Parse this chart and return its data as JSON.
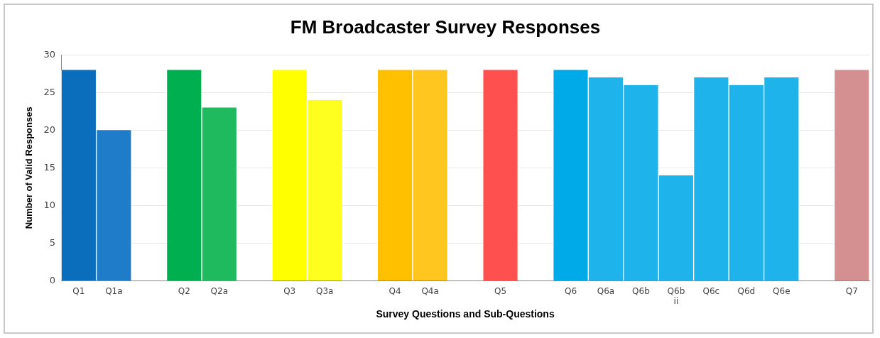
{
  "chart_data": {
    "type": "bar",
    "title": "FM Broadcaster Survey Responses",
    "xlabel": "Survey Questions and Sub-Questions",
    "ylabel": "Number of Valid Responses",
    "categories": [
      "Q1",
      "Q1a",
      null,
      "Q2",
      "Q2a",
      null,
      "Q3",
      "Q3a",
      null,
      "Q4",
      "Q4a",
      null,
      "Q5",
      null,
      "Q6",
      "Q6a",
      "Q6b",
      "Q6b ii",
      "Q6c",
      "Q6d",
      "Q6e",
      null,
      "Q7"
    ],
    "values": [
      28,
      20,
      null,
      28,
      23,
      null,
      28,
      24,
      null,
      28,
      28,
      null,
      28,
      null,
      28,
      27,
      26,
      14,
      27,
      26,
      27,
      null,
      28
    ],
    "colors": [
      "#0a6ebd",
      "#1f7cc8",
      "#ffffff",
      "#00b050",
      "#1fb95e",
      "#ffffff",
      "#ffff00",
      "#ffff1f",
      "#ffffff",
      "#ffc000",
      "#ffc61f",
      "#ffffff",
      "#ff5050",
      "#ffffff",
      "#00a9e8",
      "#1fb3ec",
      "#1fb3ec",
      "#1fb3ec",
      "#1fb3ec",
      "#1fb3ec",
      "#1fb3ec",
      "#ffffff",
      "#d49090"
    ],
    "ylim": [
      0,
      30
    ],
    "yticks": [
      0,
      5,
      10,
      15,
      20,
      25,
      30
    ],
    "grid": "y",
    "legend": false
  }
}
